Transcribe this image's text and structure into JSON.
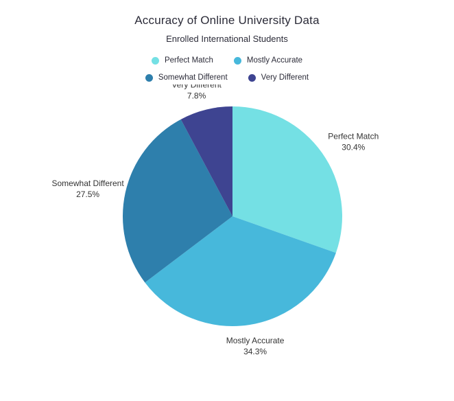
{
  "title": "Accuracy of Online University Data",
  "subtitle": "Enrolled International Students",
  "chart_data": {
    "type": "pie",
    "title": "Accuracy of Online University Data",
    "subtitle": "Enrolled International Students",
    "legend_position": "top",
    "direction": "clockwise",
    "start_angle": "12 o'clock",
    "slices": [
      {
        "label": "Perfect Match",
        "value": 30.4,
        "percent_label": "30.4%",
        "color": "#74E0E4"
      },
      {
        "label": "Mostly Accurate",
        "value": 34.3,
        "percent_label": "34.3%",
        "color": "#47B8DB"
      },
      {
        "label": "Somewhat Different",
        "value": 27.5,
        "percent_label": "27.5%",
        "color": "#2E7FAC"
      },
      {
        "label": "Very Different",
        "value": 7.8,
        "percent_label": "7.8%",
        "color": "#3E4491"
      }
    ]
  }
}
